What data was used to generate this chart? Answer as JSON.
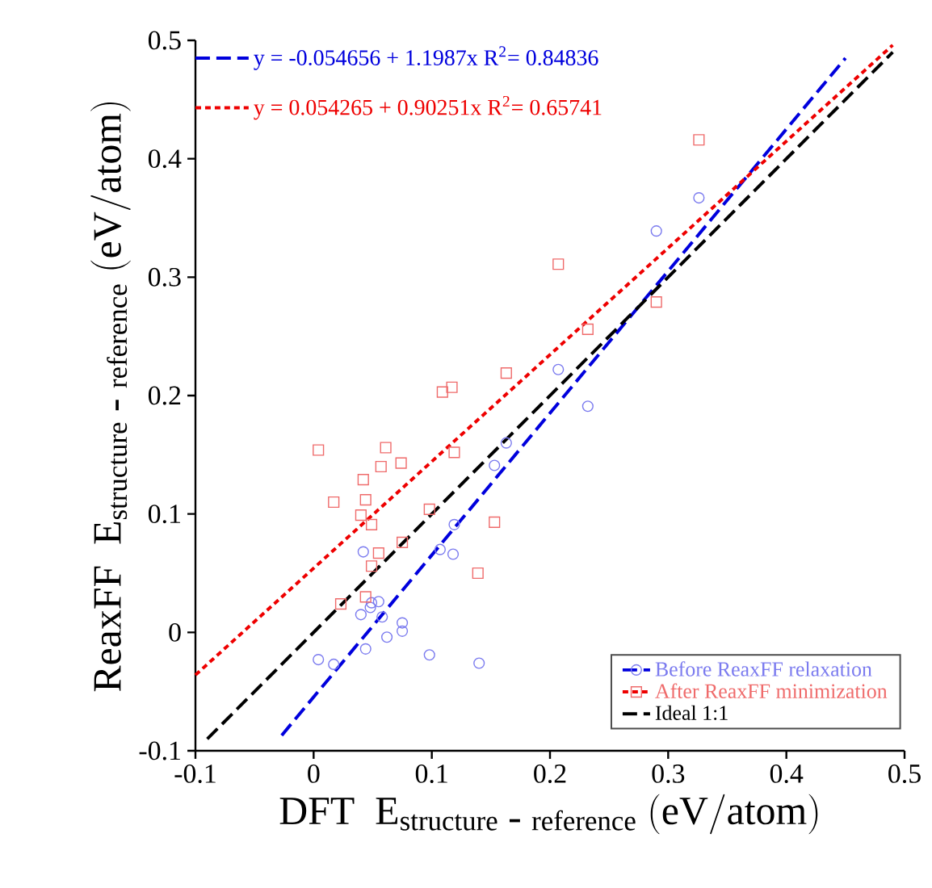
{
  "chart_data": {
    "type": "scatter",
    "xlabel": "\\mathrm{DFT\\ \\ E}_{\\mathrm{structure\\ \\textrm{-}\\ reference}}\\ \\mathrm{(eV/atom)}",
    "ylabel": "\\mathrm{ReaxFF\\ \\ E}_{\\mathrm{structure\\ \\textrm{-}\\ reference}}\\ \\mathrm{(eV/atom)}",
    "annotations": [
      "y = -0.054656 + 1.1987x   R$^{2}$= 0.84836",
      "y = 0.054265 + 0.90251x   R$^{2}$= 0.65741"
    ],
    "xlim": [
      -0.1,
      0.5
    ],
    "ylim": [
      -0.1,
      0.5
    ],
    "xticks": [
      -0.1,
      0,
      0.1,
      0.2,
      0.3,
      0.4,
      0.5
    ],
    "yticks": [
      -0.1,
      0,
      0.1,
      0.2,
      0.3,
      0.4,
      0.5
    ],
    "grid": false,
    "legend": "bottom right",
    "series": [
      {
        "name": "Before ReaxFF relaxation",
        "marker": "circle",
        "color": "#7b7bef",
        "x": [
          0.326,
          0.29,
          0.207,
          0.232,
          0.163,
          0.153,
          0.119,
          0.107,
          0.118,
          0.042,
          0.049,
          0.055,
          0.048,
          0.04,
          0.058,
          0.075,
          0.075,
          0.062,
          0.044,
          0.004,
          0.017,
          0.098,
          0.14
        ],
        "values": [
          0.367,
          0.339,
          0.222,
          0.191,
          0.16,
          0.141,
          0.091,
          0.07,
          0.066,
          0.068,
          0.025,
          0.026,
          0.021,
          0.015,
          0.013,
          0.008,
          0.001,
          -0.004,
          -0.014,
          -0.023,
          -0.027,
          -0.019,
          -0.026
        ]
      },
      {
        "name": "After ReaxFF minimization",
        "marker": "square",
        "color": "#ef6b6b",
        "x": [
          0.326,
          0.207,
          0.29,
          0.232,
          0.163,
          0.109,
          0.117,
          0.004,
          0.061,
          0.057,
          0.074,
          0.042,
          0.119,
          0.017,
          0.044,
          0.04,
          0.049,
          0.098,
          0.153,
          0.055,
          0.075,
          0.049,
          0.139,
          0.023,
          0.044
        ],
        "values": [
          0.416,
          0.311,
          0.279,
          0.256,
          0.219,
          0.203,
          0.207,
          0.154,
          0.156,
          0.14,
          0.143,
          0.129,
          0.152,
          0.11,
          0.112,
          0.099,
          0.091,
          0.104,
          0.093,
          0.067,
          0.076,
          0.056,
          0.05,
          0.024,
          0.03
        ]
      },
      {
        "type": "line",
        "marker": "none",
        "line_style": "dashed",
        "color": "#0000dd",
        "x": [
          -0.027,
          0.45
        ],
        "values": [
          -0.087,
          0.485
        ]
      },
      {
        "type": "line",
        "marker": "none",
        "line_style": "dotted",
        "color": "#ee0000",
        "x": [
          -0.1,
          0.49
        ],
        "values": [
          -0.036,
          0.496
        ]
      },
      {
        "name": "Ideal 1:1",
        "type": "line",
        "marker": "none",
        "line_style": "dashed",
        "color": "#000000",
        "x": [
          -0.09,
          0.49
        ],
        "values": [
          -0.09,
          0.49
        ]
      }
    ]
  }
}
